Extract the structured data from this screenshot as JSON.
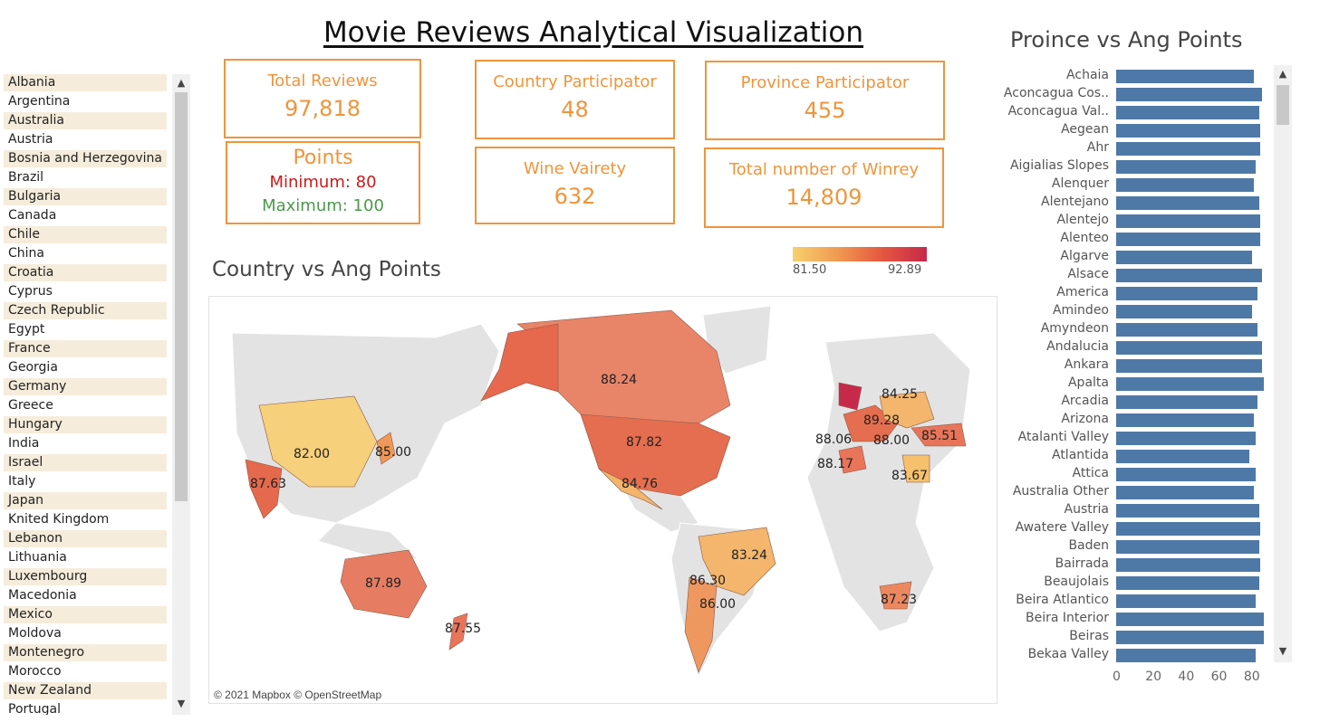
{
  "title": "Movie Reviews Analytical Visualization",
  "countries": [
    "Albania",
    "Argentina",
    "Australia",
    "Austria",
    "Bosnia and Herzegovina",
    "Brazil",
    "Bulgaria",
    "Canada",
    "Chile",
    "China",
    "Croatia",
    "Cyprus",
    "Czech Republic",
    "Egypt",
    "France",
    "Georgia",
    "Germany",
    "Greece",
    "Hungary",
    "India",
    "Israel",
    "Italy",
    "Japan",
    "Knited Kingdom",
    "Lebanon",
    "Lithuania",
    "Luxembourg",
    "Macedonia",
    "Mexico",
    "Moldova",
    "Montenegro",
    "Morocco",
    "New Zealand",
    "Portugal"
  ],
  "kpis": {
    "total_reviews": {
      "label": "Total Reviews",
      "value": "97,818"
    },
    "country_participator": {
      "label": "Country Participator",
      "value": "48"
    },
    "province_participator": {
      "label": "Province Participator",
      "value": "455"
    },
    "points": {
      "label": "Points",
      "minimum": "Minimum: 80",
      "maximum": "Maximum: 100"
    },
    "wine_variety": {
      "label": "Wine Vairety",
      "value": "632"
    },
    "winery": {
      "label": "Total number of Winrey",
      "value": "14,809"
    }
  },
  "map": {
    "title": "Country vs Ang Points",
    "legend": {
      "min": "81.50",
      "max": "92.89",
      "colors": [
        "#f7d06e",
        "#c7294a"
      ]
    },
    "credit": "© 2021 Mapbox © OpenStreetMap",
    "labels": [
      "88.24",
      "87.82",
      "84.76",
      "82.00",
      "85.00",
      "87.63",
      "87.89",
      "87.55",
      "83.24",
      "86.30",
      "86.00",
      "84.25",
      "89.28",
      "88.06",
      "88.00",
      "85.51",
      "88.17",
      "83.67",
      "87.23"
    ]
  },
  "chart_data": {
    "type": "bar",
    "title": "Proince vs Ang Points",
    "categories": [
      "Achaia",
      "Aconcagua Cos..",
      "Aconcagua Val..",
      "Aegean",
      "Ahr",
      "Aigialias Slopes",
      "Alenquer",
      "Alentejano",
      "Alentejo",
      "Alenteo",
      "Algarve",
      "Alsace",
      "America",
      "Amindeo",
      "Amyndeon",
      "Andalucia",
      "Ankara",
      "Apalta",
      "Arcadia",
      "Arizona",
      "Atalanti Valley",
      "Atlantida",
      "Attica",
      "Australia Other",
      "Austria",
      "Awatere Valley",
      "Baden",
      "Bairrada",
      "Beaujolais",
      "Beira Atlantico",
      "Beira Interior",
      "Beiras",
      "Bekaa Valley"
    ],
    "values": [
      84,
      89,
      87,
      88,
      88,
      85,
      84,
      87,
      88,
      88,
      83,
      89,
      86,
      83,
      86,
      89,
      89,
      90,
      86,
      84,
      85,
      81,
      85,
      84,
      87,
      88,
      87,
      88,
      87,
      85,
      90,
      90,
      85
    ],
    "xlim": [
      0,
      95
    ],
    "xticks": [
      "0",
      "20",
      "40",
      "60",
      "80"
    ],
    "color": "#4e79a7"
  }
}
